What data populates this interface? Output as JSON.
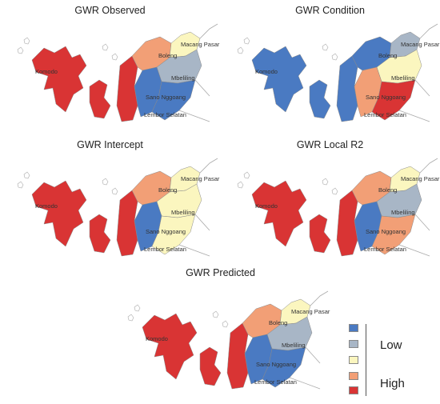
{
  "colors": {
    "low": "#4a7ac2",
    "mid_low": "#a8b6c6",
    "mid": "#fbf6bf",
    "mid_high": "#f29f76",
    "high": "#d93434",
    "outline": "#8a8a8a",
    "road": "#aaaaaa"
  },
  "panels": [
    {
      "id": "observed",
      "title": "GWR Observed",
      "zones": [
        "high",
        "high",
        "high",
        "mid_high",
        "mid",
        "mid_low",
        "low",
        "low"
      ],
      "labels": [
        "Komodo",
        "Boleng",
        "Macang Pasar",
        "Mbeliling",
        "Sano Nggoang",
        "Lembor Selatan"
      ]
    },
    {
      "id": "condition",
      "title": "GWR Condition",
      "zones": [
        "low",
        "low",
        "low",
        "low",
        "mid_low",
        "mid",
        "mid_high",
        "high"
      ],
      "labels": [
        "Komodo",
        "Boleng",
        "Macang Pasar",
        "Mbeliling",
        "Sano Nggoang",
        "Lembor Selatan"
      ]
    },
    {
      "id": "intercept",
      "title": "GWR Intercept",
      "zones": [
        "high",
        "high",
        "high",
        "mid_high",
        "mid",
        "mid",
        "low",
        "mid"
      ],
      "labels": [
        "Komodo",
        "Boleng",
        "Macang Pasar",
        "Mbeliling",
        "Sano Nggoang",
        "Lembor Selatan"
      ]
    },
    {
      "id": "localr2",
      "title": "GWR Local R2",
      "zones": [
        "high",
        "high",
        "high",
        "mid_high",
        "mid",
        "mid_low",
        "low",
        "mid_high"
      ],
      "labels": [
        "Komodo",
        "Boleng",
        "Macang Pasar",
        "Mbeliling",
        "Sano Nggoang",
        "Lembor Selatan"
      ]
    },
    {
      "id": "predicted",
      "title": "GWR Predicted",
      "zones": [
        "high",
        "high",
        "high",
        "mid_high",
        "mid",
        "mid_low",
        "low",
        "low"
      ],
      "labels": [
        "Komodo",
        "Boleng",
        "Macang Pasar",
        "Mbeliling",
        "Sano Nggoang",
        "Lembor Selatan"
      ]
    }
  ],
  "legend": {
    "classes": [
      "low",
      "mid_low",
      "mid",
      "mid_high",
      "high"
    ],
    "low_label": "Low",
    "high_label": "High"
  }
}
